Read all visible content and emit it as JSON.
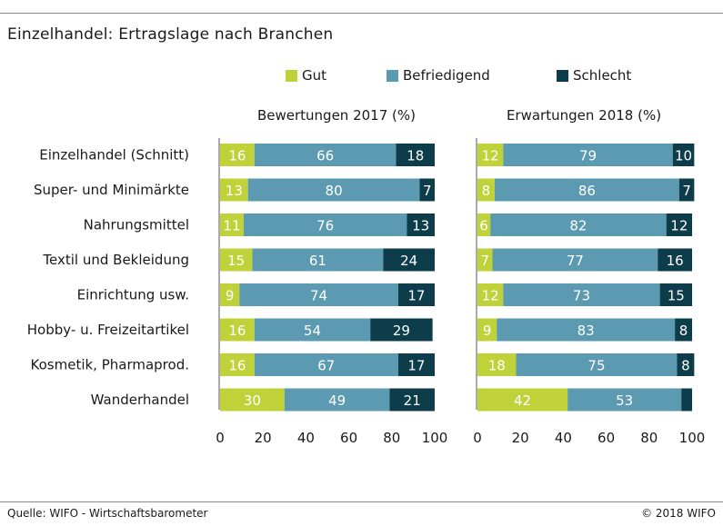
{
  "title": "Einzelhandel: Ertragslage nach Branchen",
  "footer": {
    "source": "Quelle: WIFO - Wirtschaftsbarometer",
    "copyright": "© 2018 WIFO"
  },
  "colors": {
    "gut": "#bfd23a",
    "befriedigend": "#5b9ab0",
    "schlecht": "#0d3c4b"
  },
  "chart_data": {
    "type": "bar",
    "stacked": true,
    "orientation": "horizontal",
    "legend": {
      "placement": "top",
      "entries": [
        "Gut",
        "Befriedigend",
        "Schlecht"
      ]
    },
    "categories": [
      "Einzelhandel (Schnitt)",
      "Super- und Minimärkte",
      "Nahrungsmittel",
      "Textil und Bekleidung",
      "Einrichtung usw.",
      "Hobby- u. Freizeitartikel",
      "Kosmetik, Pharmaprod.",
      "Wanderhandel"
    ],
    "xlim": [
      0,
      100
    ],
    "xticks": [
      "0",
      "20",
      "40",
      "60",
      "80",
      "100"
    ],
    "panels": [
      {
        "title": "Bewertungen 2017 (%)",
        "series": [
          {
            "name": "Gut",
            "values": [
              16,
              13,
              11,
              15,
              9,
              16,
              16,
              30
            ]
          },
          {
            "name": "Befriedigend",
            "values": [
              66,
              80,
              76,
              61,
              74,
              54,
              67,
              49
            ]
          },
          {
            "name": "Schlecht",
            "values": [
              18,
              7,
              13,
              24,
              17,
              29,
              17,
              21
            ]
          }
        ]
      },
      {
        "title": "Erwartungen 2018 (%)",
        "series": [
          {
            "name": "Gut",
            "values": [
              12,
              8,
              6,
              7,
              12,
              9,
              18,
              42
            ]
          },
          {
            "name": "Befriedigend",
            "values": [
              79,
              86,
              82,
              77,
              73,
              83,
              75,
              53
            ]
          },
          {
            "name": "Schlecht",
            "values": [
              10,
              7,
              12,
              16,
              15,
              8,
              8,
              5
            ]
          }
        ],
        "hidden_labels": [
          [],
          [],
          [],
          [],
          [],
          [],
          [],
          [
            2
          ]
        ]
      }
    ]
  }
}
